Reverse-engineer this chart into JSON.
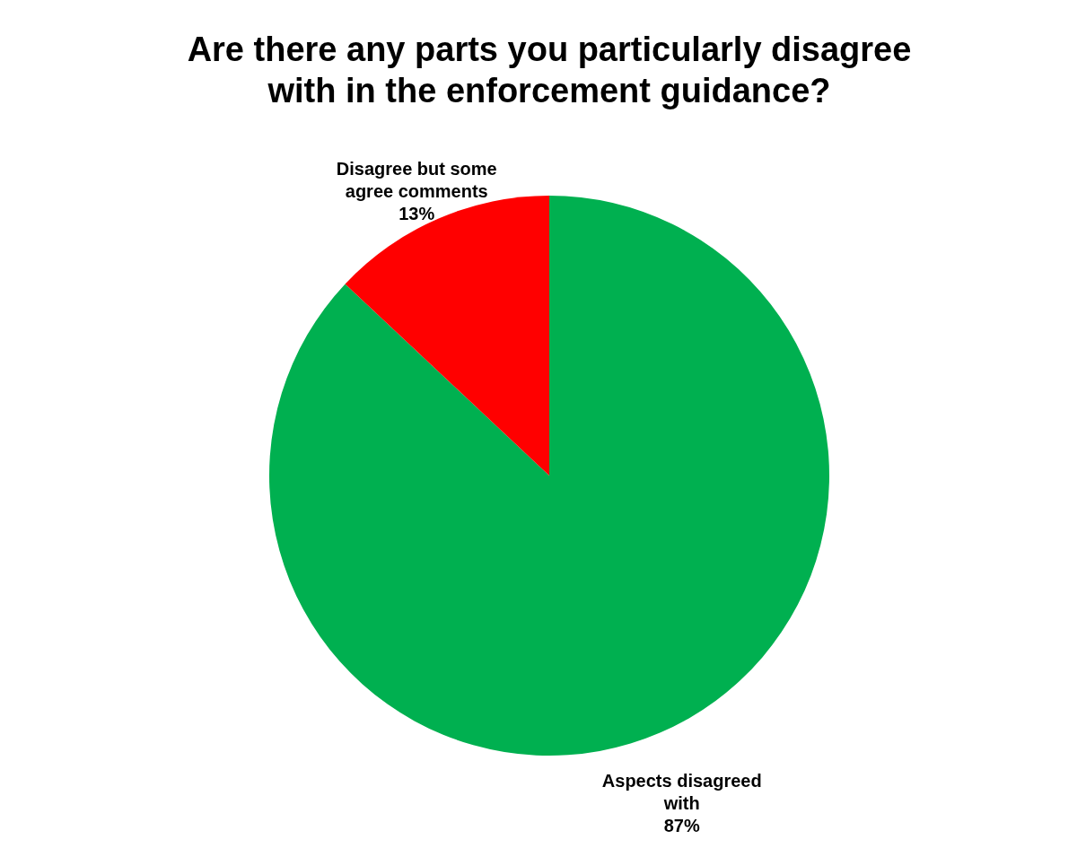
{
  "chart_data": {
    "type": "pie",
    "title": "Are there any parts you particularly disagree with in the enforcement guidance?",
    "categories": [
      "Aspects disagreed with",
      "Disagree but some agree comments"
    ],
    "values": [
      87,
      13
    ],
    "colors": [
      "#00b050",
      "#ff0000"
    ],
    "value_labels": [
      "87%",
      "13%"
    ]
  }
}
